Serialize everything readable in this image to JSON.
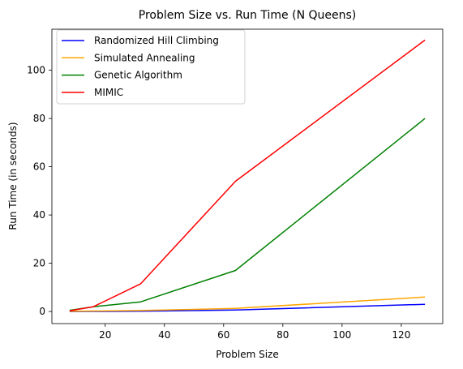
{
  "chart_data": {
    "type": "line",
    "title": "Problem Size vs. Run Time (N Queens)",
    "xlabel": "Problem Size",
    "ylabel": "Run Time (in seconds)",
    "xlim": [
      2,
      134
    ],
    "ylim": [
      -5,
      117
    ],
    "xticks": [
      20,
      40,
      60,
      80,
      100,
      120
    ],
    "yticks": [
      0,
      20,
      40,
      60,
      80,
      100
    ],
    "grid": false,
    "legend_position": "top-left",
    "x": [
      8,
      16,
      32,
      64,
      128
    ],
    "series": [
      {
        "name": "Randomized Hill Climbing",
        "color": "#0000ff",
        "values": [
          0.0,
          0.05,
          0.1,
          0.6,
          3.0
        ]
      },
      {
        "name": "Simulated Annealing",
        "color": "#ffa500",
        "values": [
          0.1,
          0.2,
          0.4,
          1.3,
          6.0
        ]
      },
      {
        "name": "Genetic Algorithm",
        "color": "#008000",
        "values": [
          0.5,
          2.0,
          4.0,
          17.0,
          80.0
        ]
      },
      {
        "name": "MIMIC",
        "color": "#ff0000",
        "values": [
          0.3,
          2.0,
          11.5,
          54.0,
          112.5
        ]
      }
    ]
  }
}
